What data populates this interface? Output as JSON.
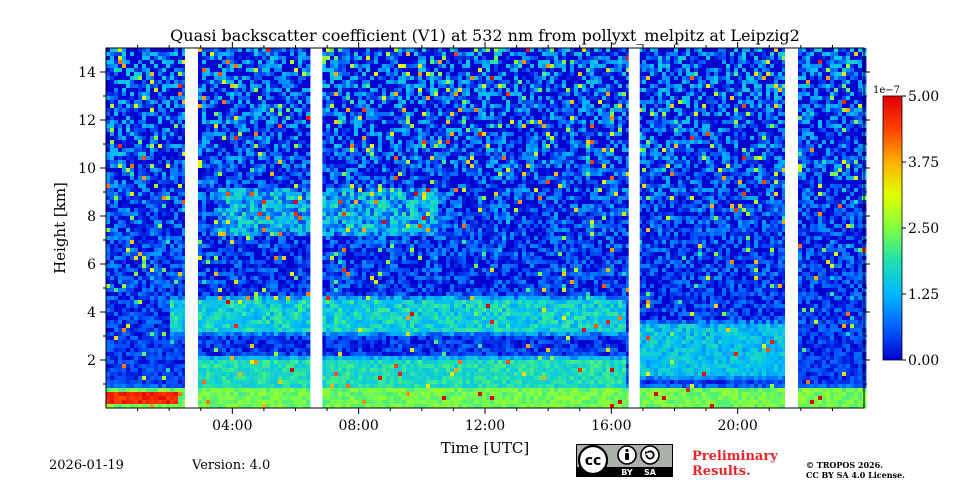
{
  "chart_data": {
    "type": "heatmap",
    "title": "Quasi backscatter coefficient (V1) at 532 nm from pollyxt_melpitz at Leipzig2",
    "xlabel": "Time [UTC]",
    "ylabel": "Height [km]",
    "xlim": [
      0,
      24
    ],
    "ylim": [
      0,
      15
    ],
    "x_ticks": [
      {
        "value": 4,
        "label": "04:00"
      },
      {
        "value": 8,
        "label": "08:00"
      },
      {
        "value": 12,
        "label": "12:00"
      },
      {
        "value": 16,
        "label": "16:00"
      },
      {
        "value": 20,
        "label": "20:00"
      }
    ],
    "y_ticks": [
      {
        "value": 2,
        "label": "2"
      },
      {
        "value": 4,
        "label": "4"
      },
      {
        "value": 6,
        "label": "6"
      },
      {
        "value": 8,
        "label": "8"
      },
      {
        "value": 10,
        "label": "10"
      },
      {
        "value": 12,
        "label": "12"
      },
      {
        "value": 14,
        "label": "14"
      }
    ],
    "data_gaps_utc": [
      [
        2.5,
        2.85
      ],
      [
        6.5,
        6.85
      ],
      [
        16.55,
        16.9
      ],
      [
        21.5,
        21.85
      ]
    ],
    "colorbar": {
      "min": 0.0,
      "max": 5.0,
      "scale_label": "1e−7",
      "ticks": [
        {
          "value": 0.0,
          "label": "0.00"
        },
        {
          "value": 1.25,
          "label": "1.25"
        },
        {
          "value": 2.5,
          "label": "2.50"
        },
        {
          "value": 3.75,
          "label": "3.75"
        },
        {
          "value": 5.0,
          "label": "5.00"
        }
      ],
      "colors": [
        "#0000d0",
        "#0060ff",
        "#00b8ff",
        "#20e0b0",
        "#80ff40",
        "#e0ff00",
        "#ffb000",
        "#ff4000",
        "#e00000"
      ]
    },
    "background_value": 0.35,
    "features": [
      {
        "name": "surface layer",
        "t": [
          0,
          24
        ],
        "h": [
          0,
          0.8
        ],
        "value": 2.4
      },
      {
        "name": "enhanced near-surface layer",
        "t": [
          0,
          2.3
        ],
        "h": [
          0.2,
          0.7
        ],
        "value": 4.6
      },
      {
        "name": "boundary layer",
        "t": [
          2.85,
          16.5
        ],
        "h": [
          0.7,
          2.0
        ],
        "value": 1.8
      },
      {
        "name": "aerosol layer",
        "t": [
          2,
          16.5
        ],
        "h": [
          3.2,
          4.5
        ],
        "value": 1.6
      },
      {
        "name": "elevated layer",
        "t": [
          3.5,
          10.5
        ],
        "h": [
          7.3,
          9.0
        ],
        "value": 1.2
      },
      {
        "name": "evening residual layer",
        "t": [
          16.9,
          21.5
        ],
        "h": [
          1.4,
          3.4
        ],
        "value": 1.4
      }
    ]
  },
  "footer": {
    "date": "2026-01-19",
    "version": "Version: 4.0",
    "preliminary_line1": "Preliminary",
    "preliminary_line2": "Results.",
    "copyright_line1": "© TROPOS 2026.",
    "copyright_line2": "CC BY SA 4.0 License.",
    "license_by": "BY",
    "license_sa": "SA",
    "license_cc": "cc"
  }
}
